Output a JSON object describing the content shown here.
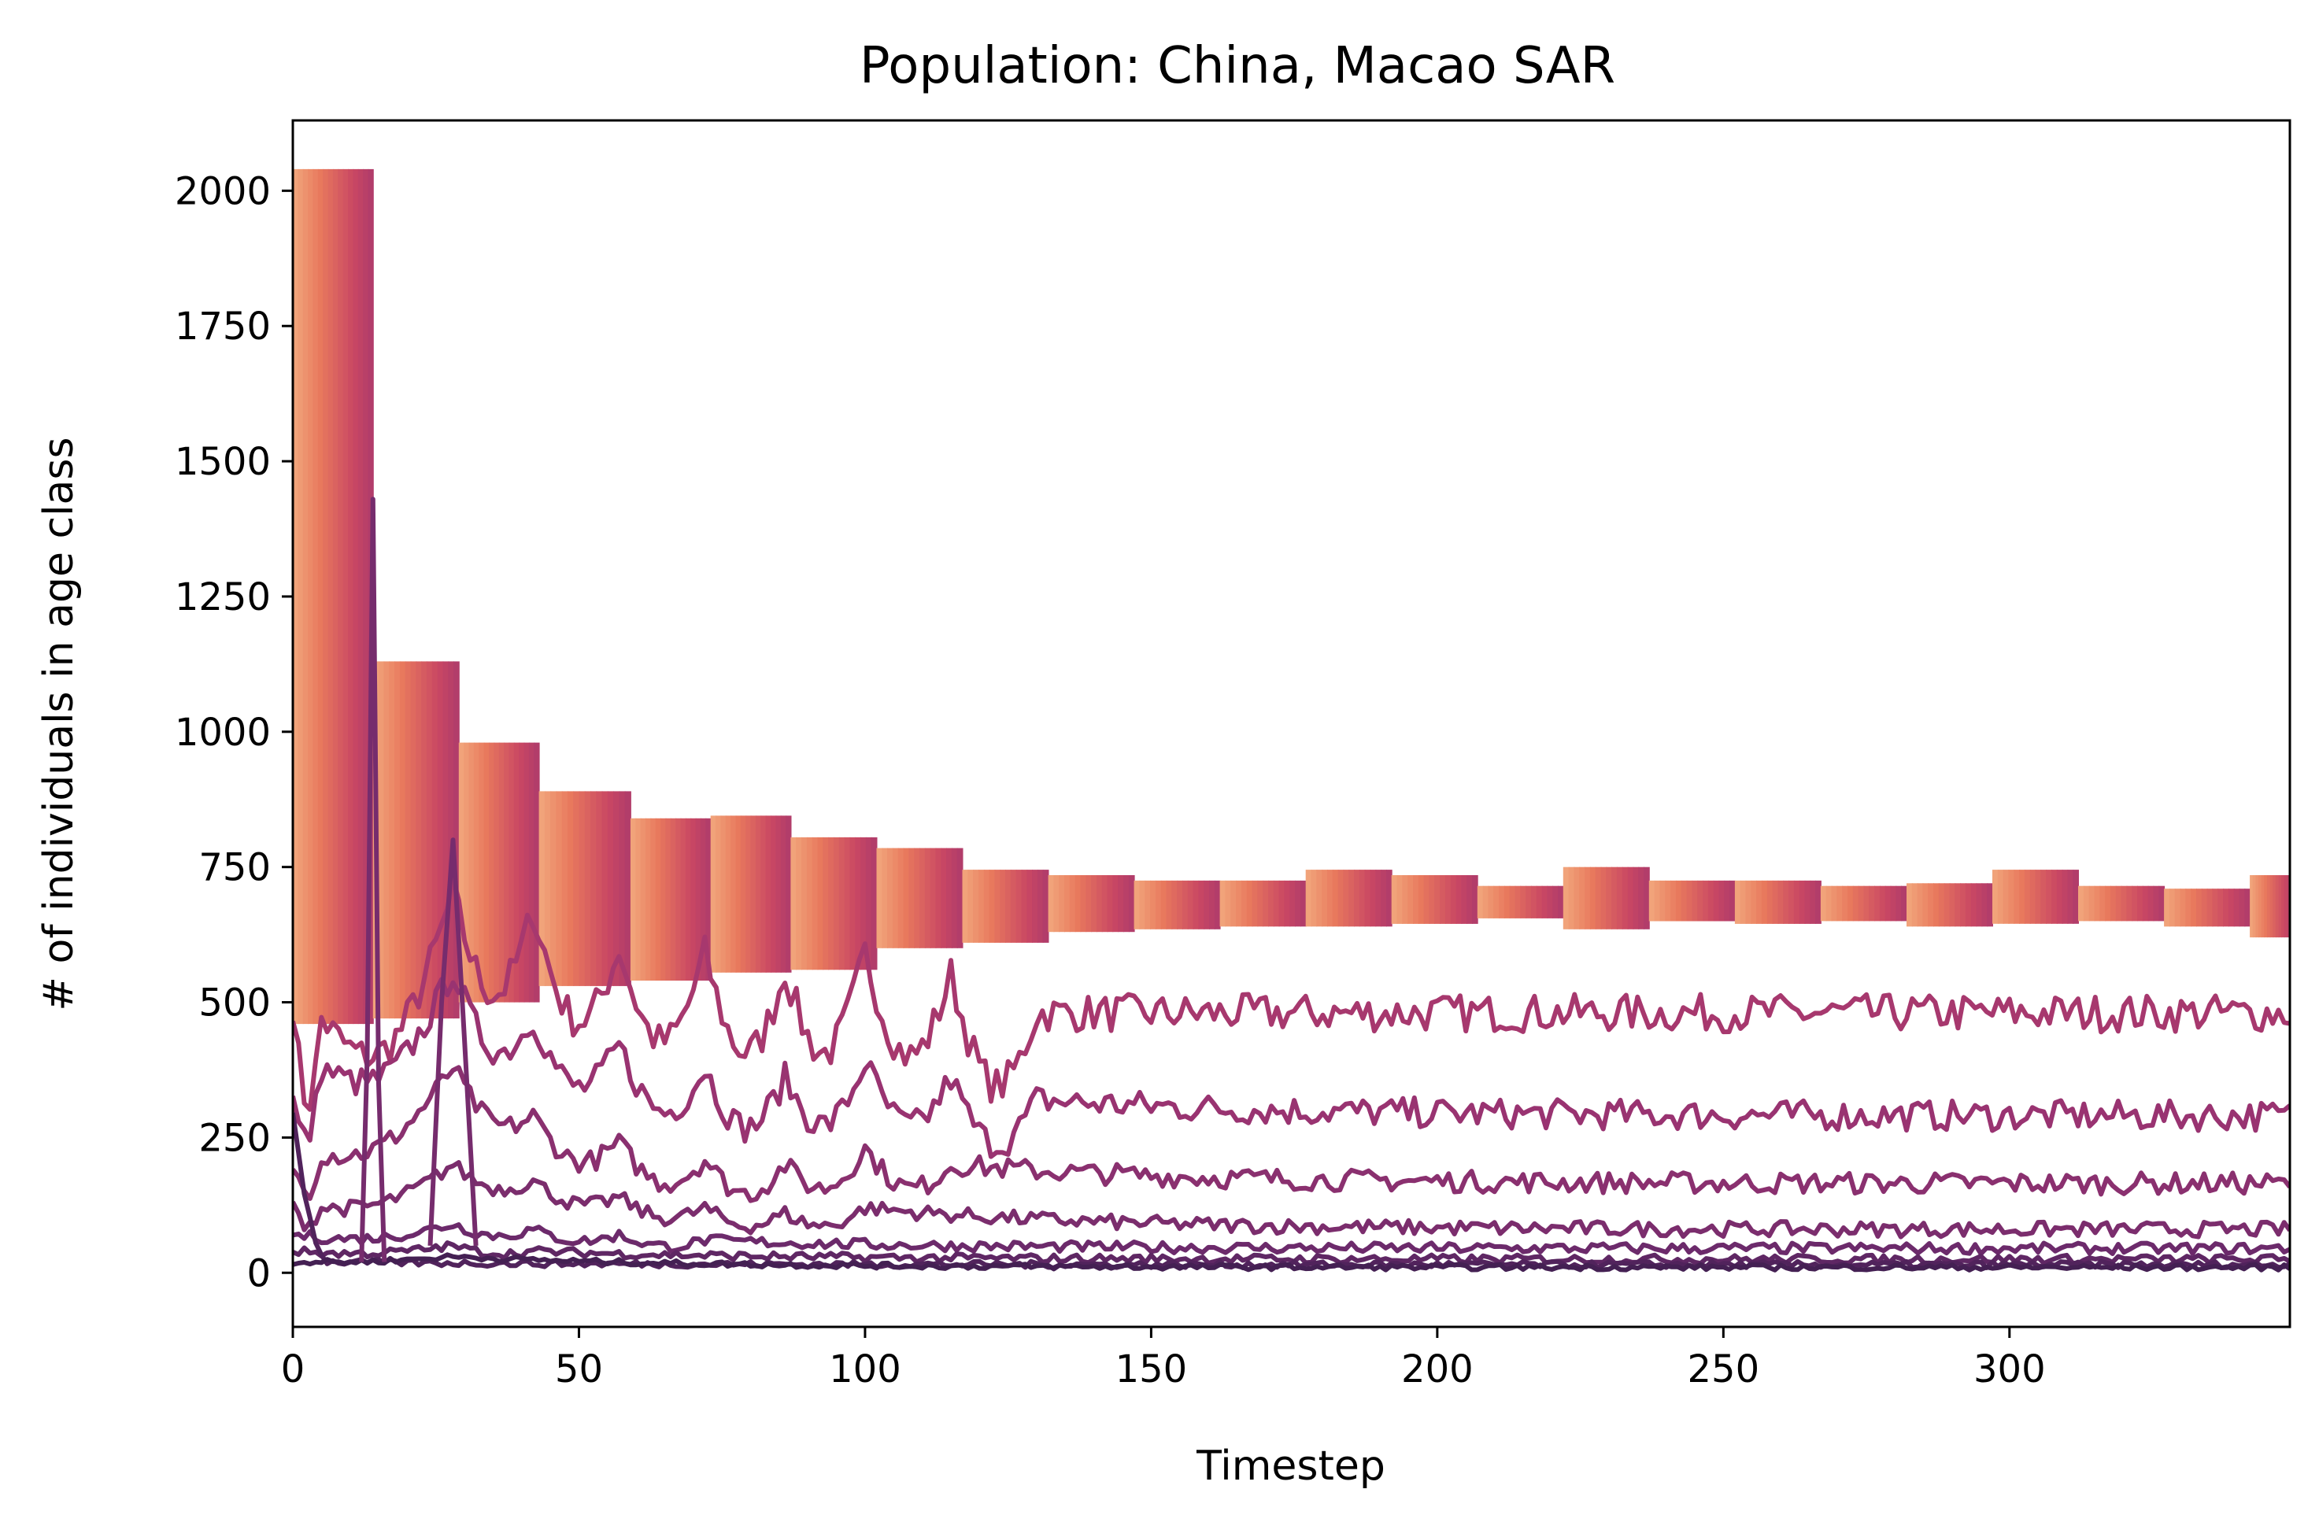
{
  "chart_data": {
    "type": "line",
    "title": "Population: China, Macao SAR",
    "xlabel": "Timestep",
    "ylabel": "# of individuals in age class",
    "xlim": [
      0,
      349
    ],
    "ylim": [
      -100,
      2130
    ],
    "xticks": [
      0,
      50,
      100,
      150,
      200,
      250,
      300
    ],
    "yticks": [
      0,
      250,
      500,
      750,
      1000,
      1250,
      1500,
      1750,
      2000
    ],
    "xtick_labels": [
      "0",
      "50",
      "100",
      "150",
      "200",
      "250",
      "300"
    ],
    "ytick_labels": [
      "0",
      "250",
      "500",
      "750",
      "1000",
      "1250",
      "1500",
      "1750",
      "2000"
    ],
    "grid": false,
    "legend": "none",
    "colormap": [
      "#f4b183",
      "#e8795d",
      "#c94763",
      "#9b3371",
      "#6a2a6b",
      "#3d1e4f"
    ],
    "band_steps": [
      {
        "x": [
          0,
          13
        ],
        "top": 2040,
        "bottom": 460
      },
      {
        "x": [
          14,
          28
        ],
        "top": 1130,
        "bottom": 470
      },
      {
        "x": [
          29,
          42
        ],
        "top": 980,
        "bottom": 500
      },
      {
        "x": [
          43,
          58
        ],
        "top": 890,
        "bottom": 530
      },
      {
        "x": [
          59,
          72
        ],
        "top": 840,
        "bottom": 540
      },
      {
        "x": [
          73,
          86
        ],
        "top": 845,
        "bottom": 555
      },
      {
        "x": [
          87,
          101
        ],
        "top": 805,
        "bottom": 560
      },
      {
        "x": [
          102,
          116
        ],
        "top": 785,
        "bottom": 600
      },
      {
        "x": [
          117,
          131
        ],
        "top": 745,
        "bottom": 610
      },
      {
        "x": [
          132,
          146
        ],
        "top": 735,
        "bottom": 630
      },
      {
        "x": [
          147,
          161
        ],
        "top": 725,
        "bottom": 635
      },
      {
        "x": [
          162,
          176
        ],
        "top": 725,
        "bottom": 640
      },
      {
        "x": [
          177,
          191
        ],
        "top": 745,
        "bottom": 640
      },
      {
        "x": [
          192,
          206
        ],
        "top": 735,
        "bottom": 645
      },
      {
        "x": [
          207,
          221
        ],
        "top": 715,
        "bottom": 655
      },
      {
        "x": [
          222,
          236
        ],
        "top": 750,
        "bottom": 635
      },
      {
        "x": [
          237,
          251
        ],
        "top": 725,
        "bottom": 650
      },
      {
        "x": [
          252,
          266
        ],
        "top": 725,
        "bottom": 645
      },
      {
        "x": [
          267,
          281
        ],
        "top": 715,
        "bottom": 650
      },
      {
        "x": [
          282,
          296
        ],
        "top": 720,
        "bottom": 640
      },
      {
        "x": [
          297,
          311
        ],
        "top": 745,
        "bottom": 645
      },
      {
        "x": [
          312,
          326
        ],
        "top": 715,
        "bottom": 650
      },
      {
        "x": [
          327,
          341
        ],
        "top": 710,
        "bottom": 640
      },
      {
        "x": [
          342,
          349
        ],
        "top": 735,
        "bottom": 620
      }
    ],
    "series": [
      {
        "values_start": 500,
        "values_peak": [
          [
            5,
            470
          ],
          [
            28,
            700
          ],
          [
            42,
            670
          ],
          [
            57,
            600
          ],
          [
            72,
            590
          ],
          [
            86,
            560
          ],
          [
            100,
            590
          ],
          [
            115,
            550
          ],
          [
            130,
            480
          ]
        ],
        "steady": 480,
        "noise": 35
      },
      {
        "values_start": 320,
        "values_peak": [
          [
            5,
            380
          ],
          [
            28,
            560
          ],
          [
            42,
            470
          ],
          [
            57,
            420
          ],
          [
            72,
            380
          ],
          [
            86,
            360
          ],
          [
            100,
            390
          ],
          [
            115,
            360
          ],
          [
            130,
            320
          ]
        ],
        "steady": 290,
        "noise": 28
      },
      {
        "values_start": 200,
        "values_peak": [
          [
            5,
            220
          ],
          [
            28,
            380
          ],
          [
            42,
            290
          ],
          [
            57,
            240
          ],
          [
            72,
            210
          ],
          [
            86,
            200
          ],
          [
            100,
            230
          ],
          [
            115,
            200
          ]
        ],
        "steady": 165,
        "noise": 20
      },
      {
        "values_start": 120,
        "values_peak": [
          [
            5,
            120
          ],
          [
            28,
            200
          ],
          [
            42,
            170
          ],
          [
            57,
            140
          ],
          [
            72,
            120
          ],
          [
            86,
            110
          ],
          [
            100,
            120
          ]
        ],
        "steady": 80,
        "noise": 14
      },
      {
        "values_start": 70,
        "values_peak": [
          [
            28,
            90
          ],
          [
            42,
            80
          ],
          [
            57,
            70
          ],
          [
            72,
            60
          ]
        ],
        "steady": 45,
        "noise": 10
      },
      {
        "values_start": 40,
        "values_peak": [
          [
            28,
            50
          ],
          [
            42,
            40
          ]
        ],
        "steady": 25,
        "noise": 8
      },
      {
        "values_start": 300,
        "values_peak": [
          [
            2,
            150
          ],
          [
            4,
            60
          ],
          [
            6,
            20
          ]
        ],
        "steady": 15,
        "noise": 6
      },
      {
        "values_start": 20,
        "values_peak": [
          [
            28,
            30
          ]
        ],
        "steady": 10,
        "noise": 5
      }
    ],
    "spikes": [
      {
        "x": [
          12,
          13,
          14,
          15,
          16
        ],
        "y": [
          20,
          400,
          1430,
          350,
          20
        ]
      },
      {
        "x": [
          24,
          26,
          28,
          30,
          32
        ],
        "y": [
          50,
          500,
          800,
          430,
          50
        ]
      }
    ]
  }
}
